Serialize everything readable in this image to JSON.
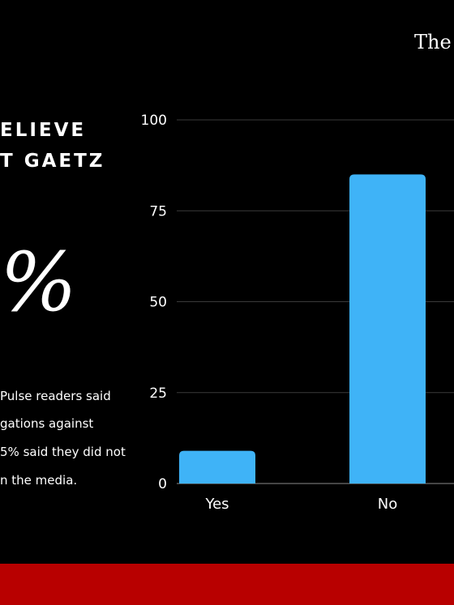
{
  "brand": {
    "name": "The"
  },
  "headline": {
    "line1": "ELIEVE",
    "line2": "T GAETZ"
  },
  "big_stat": {
    "text": "%"
  },
  "body_text": {
    "line1": "Pulse readers said",
    "line2": "gations against",
    "line3": "5% said they did not",
    "line4": "n the media."
  },
  "colors": {
    "bar": "#3fb3f7",
    "footer": "#b80000",
    "background": "#000000"
  },
  "chart_data": {
    "type": "bar",
    "categories": [
      "Yes",
      "No"
    ],
    "values": [
      9,
      85
    ],
    "title": "",
    "xlabel": "",
    "ylabel": "",
    "ylim": [
      0,
      100
    ],
    "yticks": [
      0,
      25,
      50,
      75,
      100
    ],
    "grid": true
  }
}
